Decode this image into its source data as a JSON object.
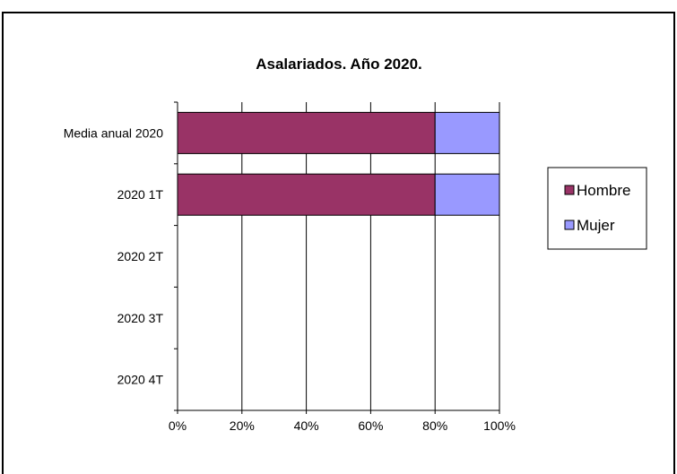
{
  "chart_data": {
    "type": "bar",
    "orientation": "horizontal",
    "stacked": "percent",
    "title": "Asalariados. Año 2020.",
    "xlabel": "",
    "ylabel": "",
    "categories": [
      "Media anual 2020",
      "2020 1T",
      "2020 2T",
      "2020 3T",
      "2020 4T"
    ],
    "series": [
      {
        "name": "Hombre",
        "color": "#993366",
        "values": [
          80,
          80,
          0,
          0,
          0
        ]
      },
      {
        "name": "Mujer",
        "color": "#9999FF",
        "values": [
          20,
          20,
          0,
          0,
          0
        ]
      }
    ],
    "xlim": [
      0,
      100
    ],
    "xticks": [
      "0%",
      "20%",
      "40%",
      "60%",
      "80%",
      "100%"
    ],
    "grid": "vertical",
    "legend": "right"
  }
}
